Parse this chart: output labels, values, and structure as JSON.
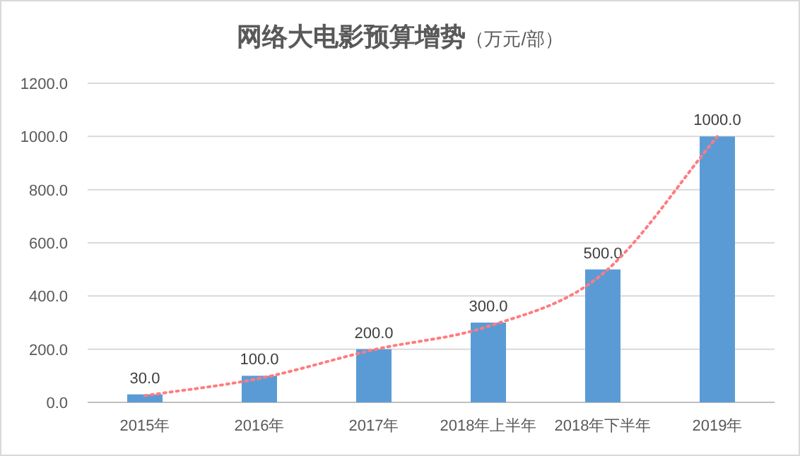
{
  "chart_data": {
    "type": "bar",
    "title": "网络大电影预算增势",
    "subtitle": "（万元/部）",
    "categories": [
      "2015年",
      "2016年",
      "2017年",
      "2018年上半年",
      "2018年下半年",
      "2019年"
    ],
    "series": [
      {
        "color": "#5b9bd5",
        "values": [
          30,
          100,
          200,
          300,
          500,
          1000
        ],
        "value_labels": [
          "30.0",
          "100.0",
          "200.0",
          "300.0",
          "500.0",
          "1000.0"
        ]
      },
      {
        "type": "line",
        "color": "#ff7c80",
        "line_style": "dotted",
        "x": [
          "2015年",
          "2016年",
          "2017年",
          "2018年上半年",
          "2018年下半年",
          "2019年"
        ],
        "values": [
          25,
          90,
          198,
          286,
          484,
          1000
        ]
      }
    ],
    "ylim": [
      0,
      1200
    ],
    "yticks": [
      {
        "value": 0,
        "label": "0.0"
      },
      {
        "value": 200,
        "label": "200.0"
      },
      {
        "value": 400,
        "label": "400.0"
      },
      {
        "value": 600,
        "label": "600.0"
      },
      {
        "value": 800,
        "label": "800.0"
      },
      {
        "value": 1000,
        "label": "1000.0"
      },
      {
        "value": 1200,
        "label": "1200.0"
      }
    ],
    "grid": "y"
  }
}
